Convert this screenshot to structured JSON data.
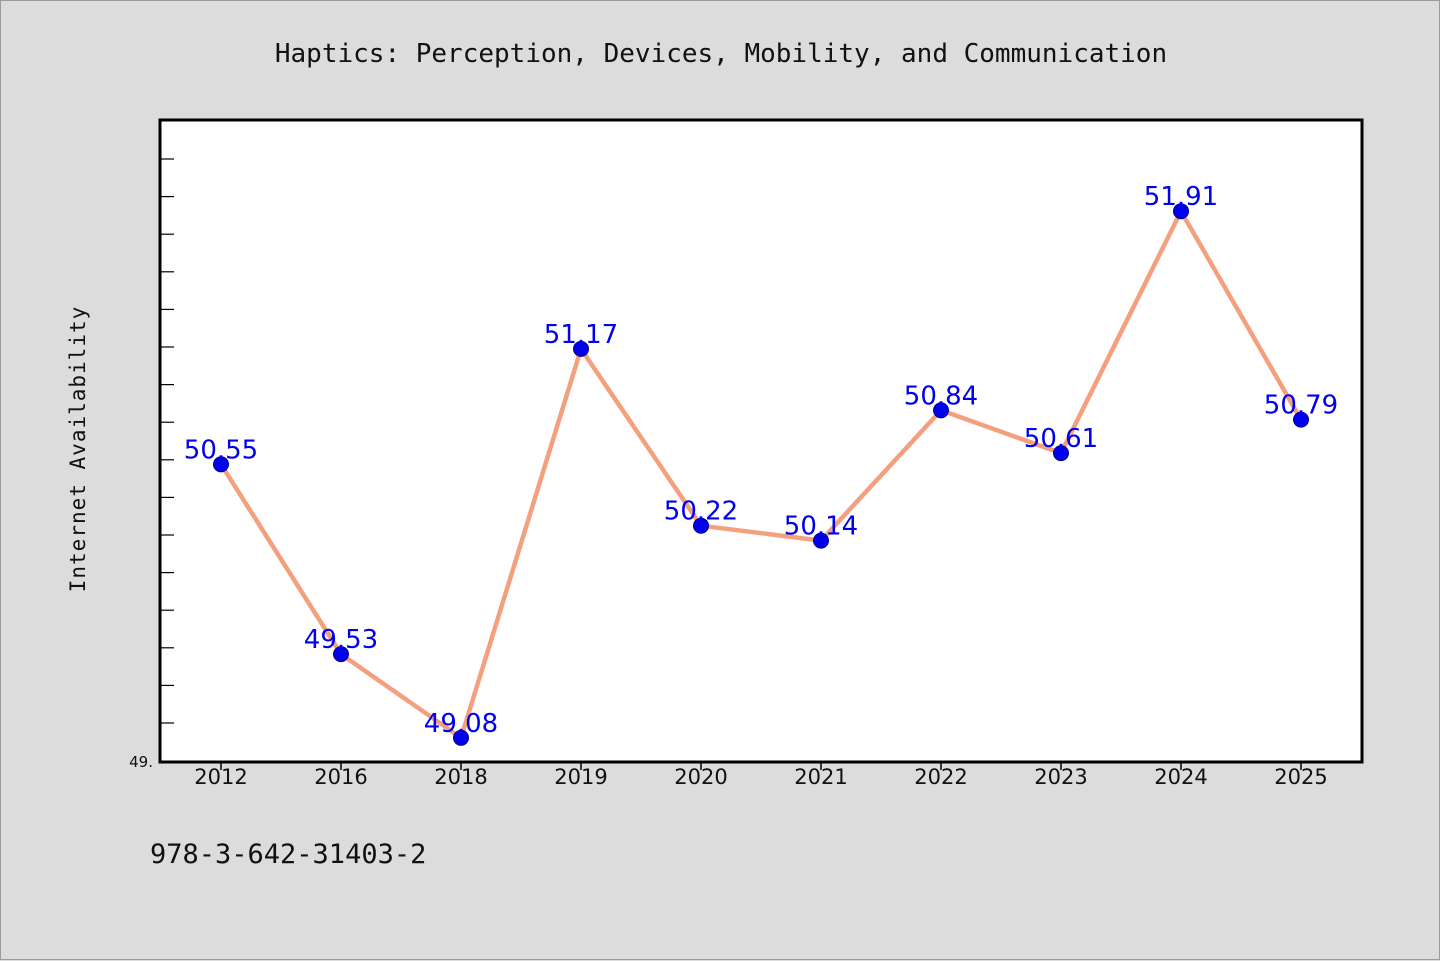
{
  "chart_data": {
    "type": "line",
    "title": "Haptics: Perception, Devices, Mobility, and Communication",
    "xlabel": "",
    "ylabel": "Internet Availability",
    "categories": [
      "2012",
      "2016",
      "2018",
      "2019",
      "2020",
      "2021",
      "2022",
      "2023",
      "2024",
      "2025"
    ],
    "values": [
      50.55,
      49.53,
      49.08,
      51.17,
      50.22,
      50.14,
      50.84,
      50.61,
      51.91,
      50.79
    ],
    "data_labels": [
      "50.55",
      "49.53",
      "49.08",
      "51.17",
      "50.22",
      "50.14",
      "50.84",
      "50.61",
      "51.91",
      "50.79"
    ],
    "ytick_labels": [
      "49."
    ],
    "ylim": [
      48.95,
      52.4
    ],
    "grid": false,
    "legend": "none",
    "line_color": "#f4a07e",
    "marker_color": "#0000ee",
    "label_color": "#0000ee"
  },
  "footer": {
    "text": "978-3-642-31403-2"
  }
}
